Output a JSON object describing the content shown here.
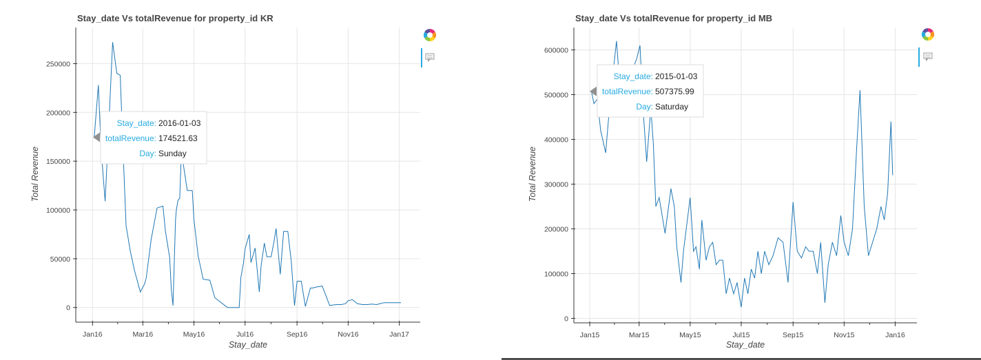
{
  "colors": {
    "series": "#1f77b4",
    "tooltip_key": "#26aae1",
    "toolbar_accent": "#26aae1"
  },
  "toolbar": {
    "icons": [
      "bokeh-logo-icon",
      "hover-tool-icon"
    ]
  },
  "chart_data": [
    {
      "type": "line",
      "title": "Stay_date Vs totalRevenue for property_id KR",
      "xlabel": "Stay_date",
      "ylabel": "Total Revenue",
      "x_type": "date",
      "xlim": [
        "2015-12-12",
        "2017-01-26"
      ],
      "ylim": [
        -15000,
        287000
      ],
      "x_ticks": [
        {
          "date": "2016-01-01",
          "label": "Jan16"
        },
        {
          "date": "2016-03-01",
          "label": "Mar16"
        },
        {
          "date": "2016-05-01",
          "label": "May16"
        },
        {
          "date": "2016-07-01",
          "label": "Jul16"
        },
        {
          "date": "2016-09-01",
          "label": "Sep16"
        },
        {
          "date": "2016-11-01",
          "label": "Nov16"
        },
        {
          "date": "2017-01-01",
          "label": "Jan17"
        }
      ],
      "y_ticks": [
        0,
        50000,
        100000,
        150000,
        200000,
        250000
      ],
      "grid": true,
      "series": [
        {
          "x": [
            "2016-01-03",
            "2016-01-08",
            "2016-01-11",
            "2016-01-16",
            "2016-01-20",
            "2016-01-25",
            "2016-01-30",
            "2016-02-03",
            "2016-02-06",
            "2016-02-10",
            "2016-02-15",
            "2016-02-20",
            "2016-02-27",
            "2016-03-03",
            "2016-03-05",
            "2016-03-11",
            "2016-03-18",
            "2016-03-25",
            "2016-03-28",
            "2016-04-02",
            "2016-04-04",
            "2016-04-06",
            "2016-04-09",
            "2016-04-10",
            "2016-04-12",
            "2016-04-14",
            "2016-04-16",
            "2016-04-23",
            "2016-04-29",
            "2016-05-01",
            "2016-05-06",
            "2016-05-12",
            "2016-05-20",
            "2016-05-26",
            "2016-06-10",
            "2016-06-24",
            "2016-06-26",
            "2016-06-29",
            "2016-07-01",
            "2016-07-06",
            "2016-07-08",
            "2016-07-13",
            "2016-07-18",
            "2016-07-20",
            "2016-07-24",
            "2016-07-27",
            "2016-08-01",
            "2016-08-04",
            "2016-08-07",
            "2016-08-12",
            "2016-08-16",
            "2016-08-21",
            "2016-08-25",
            "2016-08-29",
            "2016-09-01",
            "2016-09-06",
            "2016-09-11",
            "2016-09-17",
            "2016-09-20",
            "2016-09-24",
            "2016-10-01",
            "2016-10-10",
            "2016-10-13",
            "2016-10-18",
            "2016-10-24",
            "2016-10-29",
            "2016-11-01",
            "2016-11-06",
            "2016-11-12",
            "2016-11-18",
            "2016-11-24",
            "2016-11-29",
            "2016-12-05",
            "2016-12-09",
            "2016-12-14",
            "2016-12-20",
            "2016-12-25",
            "2016-12-30",
            "2017-01-03"
          ],
          "y": [
            174521.63,
            228000,
            165000,
            109000,
            178000,
            272000,
            240000,
            238000,
            170000,
            84000,
            58000,
            38000,
            16000,
            24000,
            30000,
            70000,
            102000,
            104000,
            78000,
            51000,
            18000,
            2000,
            90000,
            100000,
            110000,
            112000,
            160000,
            120000,
            120000,
            90000,
            53000,
            29000,
            28000,
            10000,
            0,
            0,
            31000,
            45000,
            60000,
            75000,
            46000,
            61000,
            16000,
            42000,
            66000,
            52000,
            52000,
            65000,
            81000,
            34000,
            78000,
            78000,
            48000,
            2000,
            27000,
            27000,
            1000,
            20000,
            20000,
            21000,
            22000,
            2000,
            2500,
            3000,
            3000,
            4000,
            7000,
            8000,
            4000,
            3000,
            3000,
            3500,
            3000,
            4000,
            5000,
            5000,
            5000,
            5000,
            5000
          ]
        }
      ],
      "tooltip": {
        "rows": [
          {
            "key": "Stay_date:",
            "value": "2016-01-03"
          },
          {
            "key": "totalRevenue:",
            "value": "174521.63"
          },
          {
            "key": "Day:",
            "value": "Sunday"
          }
        ]
      }
    },
    {
      "type": "line",
      "title": "Stay_date Vs totalRevenue for property_id MB",
      "xlabel": "Stay_date",
      "ylabel": "Total Revenue",
      "x_type": "date",
      "xlim": [
        "2014-12-13",
        "2016-01-27"
      ],
      "ylim": [
        -10000,
        650000
      ],
      "x_ticks": [
        {
          "date": "2015-01-01",
          "label": "Jan15"
        },
        {
          "date": "2015-03-01",
          "label": "Mar15"
        },
        {
          "date": "2015-05-01",
          "label": "May15"
        },
        {
          "date": "2015-07-01",
          "label": "Jul15"
        },
        {
          "date": "2015-09-01",
          "label": "Sep15"
        },
        {
          "date": "2015-11-01",
          "label": "Nov15"
        },
        {
          "date": "2016-01-01",
          "label": "Jan16"
        }
      ],
      "y_ticks": [
        0,
        100000,
        200000,
        300000,
        400000,
        500000,
        600000
      ],
      "grid": true,
      "series": [
        {
          "x": [
            "2015-01-03",
            "2015-01-06",
            "2015-01-10",
            "2015-01-14",
            "2015-01-20",
            "2015-01-25",
            "2015-02-02",
            "2015-02-06",
            "2015-02-12",
            "2015-02-18",
            "2015-02-26",
            "2015-03-02",
            "2015-03-06",
            "2015-03-10",
            "2015-03-15",
            "2015-03-18",
            "2015-03-21",
            "2015-03-25",
            "2015-04-01",
            "2015-04-08",
            "2015-04-12",
            "2015-04-15",
            "2015-04-20",
            "2015-04-23",
            "2015-05-01",
            "2015-05-05",
            "2015-05-08",
            "2015-05-12",
            "2015-05-15",
            "2015-05-20",
            "2015-05-24",
            "2015-05-28",
            "2015-06-01",
            "2015-06-05",
            "2015-06-09",
            "2015-06-13",
            "2015-06-17",
            "2015-06-22",
            "2015-06-26",
            "2015-07-01",
            "2015-07-05",
            "2015-07-09",
            "2015-07-13",
            "2015-07-17",
            "2015-07-21",
            "2015-07-25",
            "2015-07-29",
            "2015-08-03",
            "2015-08-08",
            "2015-08-14",
            "2015-08-20",
            "2015-08-26",
            "2015-09-01",
            "2015-09-06",
            "2015-09-11",
            "2015-09-16",
            "2015-09-20",
            "2015-09-25",
            "2015-09-30",
            "2015-10-04",
            "2015-10-09",
            "2015-10-13",
            "2015-10-18",
            "2015-10-23",
            "2015-10-28",
            "2015-11-01",
            "2015-11-06",
            "2015-11-11",
            "2015-11-16",
            "2015-11-20",
            "2015-11-25",
            "2015-11-30",
            "2015-12-05",
            "2015-12-10",
            "2015-12-15",
            "2015-12-19",
            "2015-12-23",
            "2015-12-27",
            "2015-12-29"
          ],
          "y": [
            507375.99,
            480000,
            490000,
            420000,
            370000,
            480000,
            620000,
            520000,
            450000,
            540000,
            580000,
            610000,
            460000,
            350000,
            470000,
            390000,
            250000,
            270000,
            190000,
            290000,
            250000,
            160000,
            80000,
            150000,
            270000,
            150000,
            160000,
            110000,
            220000,
            130000,
            160000,
            170000,
            120000,
            130000,
            130000,
            55000,
            90000,
            55000,
            80000,
            25000,
            90000,
            55000,
            110000,
            90000,
            150000,
            100000,
            150000,
            120000,
            140000,
            180000,
            170000,
            80000,
            260000,
            150000,
            135000,
            160000,
            150000,
            150000,
            100000,
            170000,
            35000,
            120000,
            170000,
            140000,
            230000,
            170000,
            140000,
            200000,
            380000,
            510000,
            250000,
            140000,
            170000,
            200000,
            250000,
            220000,
            280000,
            440000,
            320000
          ]
        }
      ],
      "tooltip": {
        "rows": [
          {
            "key": "Stay_date:",
            "value": "2015-01-03"
          },
          {
            "key": "totalRevenue:",
            "value": "507375.99"
          },
          {
            "key": "Day:",
            "value": "Saturday"
          }
        ]
      }
    }
  ]
}
